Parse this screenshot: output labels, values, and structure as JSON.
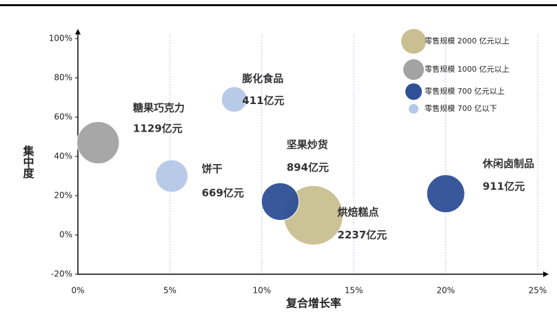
{
  "chart_data": {
    "type": "bubble",
    "x_label": "复合增长率",
    "y_label": "集中度",
    "xlim": [
      0,
      25
    ],
    "xticks": [
      {
        "value": 0,
        "label": "0%"
      },
      {
        "value": 5,
        "label": "5%"
      },
      {
        "value": 10,
        "label": "10%"
      },
      {
        "value": 15,
        "label": "15%"
      },
      {
        "value": 20,
        "label": "20%"
      },
      {
        "value": 25,
        "label": "25%"
      }
    ],
    "ylim": [
      -20,
      100
    ],
    "yticks": [
      {
        "value": -20,
        "label": "-20%"
      },
      {
        "value": 0,
        "label": "0%"
      },
      {
        "value": 20,
        "label": "20%"
      },
      {
        "value": 40,
        "label": "40%"
      },
      {
        "value": 60,
        "label": "60%"
      },
      {
        "value": 80,
        "label": "80%"
      },
      {
        "value": 100,
        "label": "100%"
      }
    ],
    "grid": true,
    "series": [
      {
        "name": "零售规模 2000 亿元以上",
        "color": "#c9bf91",
        "labels": [
          "烘焙糕点"
        ],
        "x": [
          12.8
        ],
        "values": [
          10
        ],
        "sizes": [
          2237
        ],
        "value_labels": [
          "2237亿元"
        ]
      },
      {
        "name": "零售规模 1000 亿元以上",
        "color": "#a3a3a3",
        "labels": [
          "糖果巧克力"
        ],
        "x": [
          1.1
        ],
        "values": [
          47
        ],
        "sizes": [
          1129
        ],
        "value_labels": [
          "1129亿元"
        ]
      },
      {
        "name": "零售规模 700 亿元以上",
        "color": "#2f5096",
        "labels": [
          "坚果炒货",
          "休闲卤制品"
        ],
        "x": [
          11,
          20
        ],
        "values": [
          17,
          21
        ],
        "sizes": [
          894,
          911
        ],
        "value_labels": [
          "894亿元",
          "911亿元"
        ]
      },
      {
        "name": "零售规模 700 亿以下",
        "color": "#b6c8e8",
        "labels": [
          "饼干",
          "膨化食品"
        ],
        "x": [
          5.1,
          8.5
        ],
        "values": [
          30,
          69
        ],
        "sizes": [
          669,
          411
        ],
        "value_labels": [
          "669亿元",
          "411亿元"
        ]
      }
    ]
  }
}
